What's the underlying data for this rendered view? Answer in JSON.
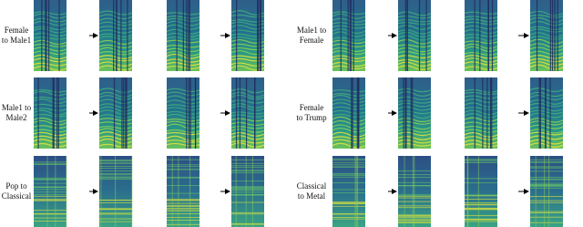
{
  "rows": [
    {
      "left": [
        "Female",
        "to Male1"
      ],
      "right": [
        "Male1 to",
        "Female"
      ]
    },
    {
      "left": [
        "Male1 to",
        "Male2"
      ],
      "right": [
        "Female",
        "to Trump"
      ]
    },
    {
      "left": [
        "Pop to",
        "Classical"
      ],
      "right": [
        "Classical",
        "to Metal"
      ]
    }
  ]
}
